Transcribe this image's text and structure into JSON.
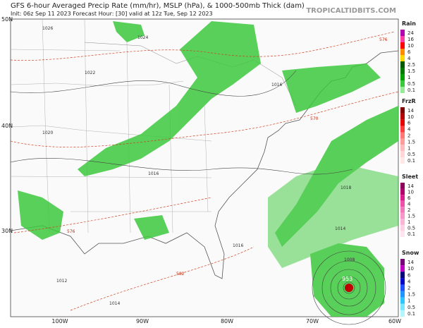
{
  "header": {
    "title": "GFS 6-hour Averaged Precip Rate (mm/hr), MSLP (hPa), & 1000-500mb Thick (dam)",
    "subtitle": "Init: 06z Sep 11 2023   Forecast Hour: [30]   valid at 12z Tue, Sep 12 2023",
    "credit": "TROPICALTIDBITS.COM"
  },
  "axes": {
    "latitude_labels": [
      "50N",
      "40N",
      "30N"
    ],
    "longitude_labels": [
      "100W",
      "90W",
      "80W",
      "70W",
      "60W"
    ]
  },
  "legend": [
    {
      "name": "Rain",
      "levels": [
        24,
        16,
        10,
        6,
        4,
        2.5,
        1.5,
        1,
        0.5,
        0.1
      ],
      "colors": [
        "#b000b0",
        "#ff3ca0",
        "#ff0000",
        "#ff8c00",
        "#ffd700",
        "#005a00",
        "#007d00",
        "#00a000",
        "#3cc83c",
        "#96eb96"
      ]
    },
    {
      "name": "FrzR",
      "levels": [
        14,
        10,
        6,
        4,
        2,
        1.5,
        1,
        0.5,
        0.1
      ],
      "colors": [
        "#800000",
        "#b40000",
        "#e60000",
        "#ff3c3c",
        "#ff7878",
        "#ff9b9b",
        "#ffbcbc",
        "#ffd7d7",
        "#ffe8e8"
      ]
    },
    {
      "name": "Sleet",
      "levels": [
        14,
        10,
        6,
        4,
        2,
        1.5,
        1,
        0.5,
        0.1
      ],
      "colors": [
        "#8c005a",
        "#b4006e",
        "#dc1e8c",
        "#f050a5",
        "#f578b9",
        "#f896c8",
        "#fab4d7",
        "#fcd2e6",
        "#fee6f0"
      ]
    },
    {
      "name": "Snow",
      "levels": [
        14,
        10,
        6,
        4,
        2,
        1.5,
        1,
        0.5,
        0.1
      ],
      "colors": [
        "#780078",
        "#c000c0",
        "#000078",
        "#0000c8",
        "#1e50ff",
        "#1e96ff",
        "#28c8ff",
        "#78e6ff",
        "#b4f5ff"
      ]
    }
  ],
  "map_labels": {
    "isobars": [
      "1026",
      "1024",
      "1022",
      "1020",
      "1016",
      "1016",
      "1016",
      "1018",
      "1014",
      "1012",
      "1008",
      "1014",
      "953"
    ],
    "thickness": [
      "576",
      "570",
      "576",
      "582"
    ]
  }
}
